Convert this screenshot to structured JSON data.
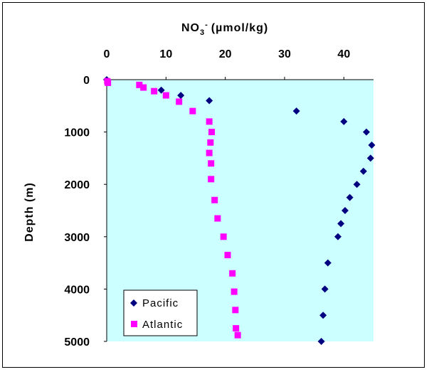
{
  "chart_data": {
    "type": "scatter",
    "title": "",
    "xlabel": "NO3- (µmol/kg)",
    "xlabel_main": "NO",
    "xlabel_sub": "3",
    "xlabel_sup": "-",
    "xlabel_units": "(µmol/kg)",
    "ylabel": "Depth (m)",
    "xlim": [
      0,
      45
    ],
    "ylim": [
      0,
      5000
    ],
    "y_inverted": true,
    "x_axis_position": "top",
    "xticks": [
      "0",
      "10",
      "20",
      "30",
      "40"
    ],
    "yticks": [
      "0",
      "1000",
      "2000",
      "3000",
      "4000",
      "5000"
    ],
    "grid": false,
    "plot_background": "#ccffff",
    "legend_position": "bottom-left",
    "series": [
      {
        "name": "Pacific",
        "marker": "diamond",
        "color": "#000080",
        "points": [
          {
            "x": 0,
            "y": 0
          },
          {
            "x": 9.2,
            "y": 200
          },
          {
            "x": 12.5,
            "y": 300
          },
          {
            "x": 17.3,
            "y": 400
          },
          {
            "x": 32,
            "y": 600
          },
          {
            "x": 40,
            "y": 800
          },
          {
            "x": 43.8,
            "y": 1000
          },
          {
            "x": 44.7,
            "y": 1250
          },
          {
            "x": 44.5,
            "y": 1500
          },
          {
            "x": 43.3,
            "y": 1750
          },
          {
            "x": 42.2,
            "y": 2000
          },
          {
            "x": 41,
            "y": 2250
          },
          {
            "x": 40.2,
            "y": 2500
          },
          {
            "x": 39.5,
            "y": 2750
          },
          {
            "x": 39,
            "y": 3000
          },
          {
            "x": 37.3,
            "y": 3500
          },
          {
            "x": 36.8,
            "y": 4000
          },
          {
            "x": 36.5,
            "y": 4500
          },
          {
            "x": 36.2,
            "y": 5000
          }
        ]
      },
      {
        "name": "Atlantic",
        "marker": "square",
        "color": "#ff00ff",
        "points": [
          {
            "x": 0.1,
            "y": 30
          },
          {
            "x": 0.2,
            "y": 60
          },
          {
            "x": 5.5,
            "y": 100
          },
          {
            "x": 6.2,
            "y": 150
          },
          {
            "x": 8,
            "y": 220
          },
          {
            "x": 10,
            "y": 300
          },
          {
            "x": 12.2,
            "y": 420
          },
          {
            "x": 14.5,
            "y": 600
          },
          {
            "x": 17.3,
            "y": 800
          },
          {
            "x": 17.7,
            "y": 1000
          },
          {
            "x": 17.5,
            "y": 1200
          },
          {
            "x": 17.3,
            "y": 1400
          },
          {
            "x": 17.6,
            "y": 1600
          },
          {
            "x": 17.6,
            "y": 1900
          },
          {
            "x": 18.2,
            "y": 2300
          },
          {
            "x": 18.7,
            "y": 2650
          },
          {
            "x": 19.7,
            "y": 3000
          },
          {
            "x": 20.4,
            "y": 3350
          },
          {
            "x": 21.2,
            "y": 3700
          },
          {
            "x": 21.5,
            "y": 4050
          },
          {
            "x": 21.7,
            "y": 4400
          },
          {
            "x": 21.8,
            "y": 4750
          },
          {
            "x": 22.1,
            "y": 4880
          }
        ]
      }
    ]
  }
}
